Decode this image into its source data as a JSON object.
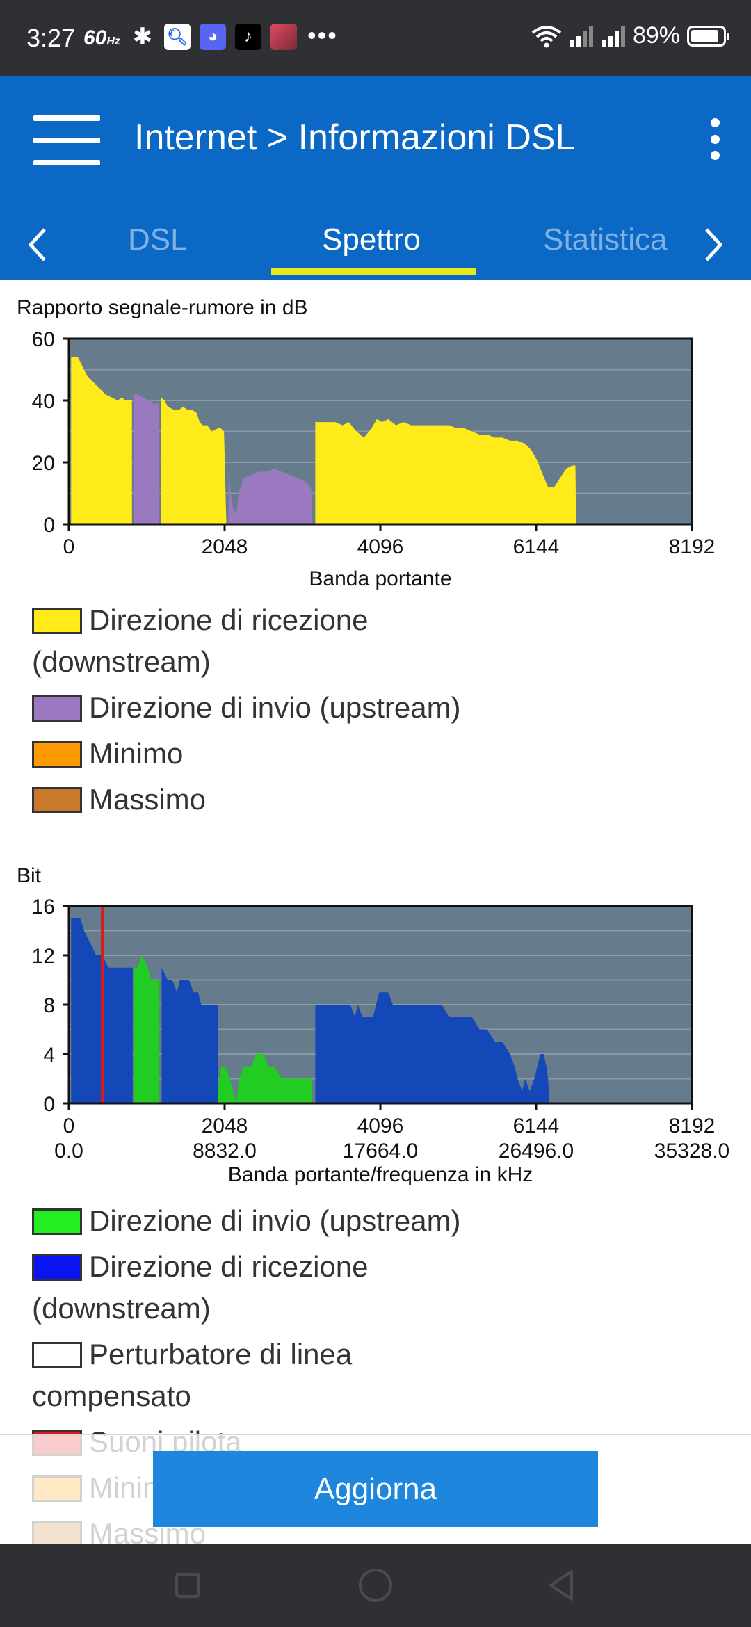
{
  "status_bar": {
    "time": "3:27",
    "refresh_rate": "60",
    "refresh_unit": "Hz",
    "battery": "89%",
    "battery_level": 0.89,
    "notification_icons": [
      "bluetooth-icon",
      "search-app-icon",
      "discord-icon",
      "tiktok-icon",
      "photo-app-icon"
    ]
  },
  "header": {
    "title": "Internet > Informazioni DSL",
    "tabs": [
      {
        "label": "DSL",
        "active": false
      },
      {
        "label": "Spettro",
        "active": true
      },
      {
        "label": "Statistica",
        "active": false
      }
    ]
  },
  "colors": {
    "appbar": "#0b68c4",
    "tab_indicator": "#e8e81f",
    "plot_bg": "#667b8c",
    "downstream_snr": "#ffeb1a",
    "upstream_snr": "#9b79c0",
    "minimo": "#ff9a00",
    "massimo": "#c87a2a",
    "upstream_bits": "#22cc22",
    "downstream_bits": "#1447b8",
    "pilot": "#e01818",
    "button": "#1e86dc"
  },
  "snr_chart": {
    "title": "Rapporto segnale-rumore in dB",
    "xlabel": "Banda portante",
    "legend": [
      {
        "label": "Direzione di ricezione (downstream)",
        "color": "#ffeb1a"
      },
      {
        "label": "Direzione di invio (upstream)",
        "color": "#9b79c0"
      },
      {
        "label": "Minimo",
        "color": "#ff9a00"
      },
      {
        "label": "Massimo",
        "color": "#c87a2a"
      }
    ]
  },
  "bit_chart": {
    "title": "Bit",
    "xlabel": "Banda portante/frequenza in kHz",
    "legend": [
      {
        "label": "Direzione di invio (upstream)",
        "color": "#22ee22"
      },
      {
        "label": "Direzione di ricezione (downstream)",
        "color": "#0a14f0"
      },
      {
        "label": "Perturbatore di linea compensato",
        "color": "#ffffff"
      },
      {
        "label": "Suoni pilota",
        "color": "#e01818"
      },
      {
        "label": "Minimo",
        "color": "#ff9a00"
      },
      {
        "label": "Massimo",
        "color": "#c87a2a"
      }
    ]
  },
  "chart_data": [
    {
      "type": "area",
      "title": "Rapporto segnale-rumore in dB",
      "xlabel": "Banda portante",
      "ylabel": "",
      "xlim": [
        0,
        8192
      ],
      "ylim": [
        0,
        60
      ],
      "xticks": [
        "0",
        "2048",
        "4096",
        "6144",
        "8192"
      ],
      "yticks": [
        "0",
        "20",
        "40",
        "60"
      ],
      "grid": true,
      "series": [
        {
          "name": "Direzione di ricezione (downstream)",
          "color": "#ffeb1a",
          "segments": [
            [
              [
                30,
                54
              ],
              [
                120,
                54
              ],
              [
                160,
                52
              ],
              [
                240,
                48
              ],
              [
                320,
                46
              ],
              [
                400,
                44
              ],
              [
                480,
                42
              ],
              [
                560,
                41
              ],
              [
                640,
                40
              ],
              [
                700,
                41
              ],
              [
                740,
                40
              ],
              [
                760,
                40
              ],
              [
                800,
                40
              ],
              [
                830,
                40
              ]
            ],
            [
              [
                1210,
                41
              ],
              [
                1260,
                40
              ],
              [
                1300,
                38
              ],
              [
                1380,
                37
              ],
              [
                1450,
                37
              ],
              [
                1500,
                38
              ],
              [
                1560,
                37
              ],
              [
                1620,
                37
              ],
              [
                1680,
                36
              ],
              [
                1720,
                33
              ],
              [
                1760,
                32
              ],
              [
                1820,
                32
              ],
              [
                1880,
                30
              ],
              [
                1960,
                31
              ],
              [
                2000,
                31
              ],
              [
                2040,
                30
              ],
              [
                2070,
                1
              ]
            ],
            [
              [
                3240,
                33
              ],
              [
                3300,
                33
              ],
              [
                3400,
                33
              ],
              [
                3500,
                33
              ],
              [
                3600,
                32
              ],
              [
                3680,
                33
              ],
              [
                3780,
                30
              ],
              [
                3880,
                28
              ],
              [
                3980,
                31
              ],
              [
                4050,
                34
              ],
              [
                4120,
                33
              ],
              [
                4200,
                34
              ],
              [
                4300,
                32
              ],
              [
                4400,
                33
              ],
              [
                4500,
                32
              ],
              [
                4600,
                32
              ],
              [
                4700,
                32
              ],
              [
                4800,
                32
              ],
              [
                4900,
                32
              ],
              [
                5000,
                32
              ],
              [
                5100,
                31
              ],
              [
                5200,
                31
              ],
              [
                5300,
                30
              ],
              [
                5400,
                29
              ],
              [
                5500,
                29
              ],
              [
                5600,
                28
              ],
              [
                5700,
                28
              ],
              [
                5800,
                27
              ],
              [
                5900,
                27
              ],
              [
                6000,
                26
              ],
              [
                6080,
                24
              ],
              [
                6150,
                21
              ],
              [
                6200,
                18
              ],
              [
                6250,
                15
              ],
              [
                6300,
                12
              ],
              [
                6380,
                12
              ],
              [
                6460,
                15
              ],
              [
                6540,
                18
              ],
              [
                6620,
                19
              ],
              [
                6660,
                19
              ],
              [
                6670,
                1
              ]
            ]
          ]
        },
        {
          "name": "Direzione di invio (upstream)",
          "color": "#9b79c0",
          "segments": [
            [
              [
                850,
                42
              ],
              [
                900,
                42
              ],
              [
                980,
                41
              ],
              [
                1060,
                40
              ],
              [
                1120,
                39
              ],
              [
                1170,
                39
              ],
              [
                1190,
                39
              ]
            ],
            [
              [
                2100,
                16
              ],
              [
                2150,
                6
              ],
              [
                2200,
                3
              ],
              [
                2230,
                10
              ],
              [
                2300,
                15
              ],
              [
                2400,
                16
              ],
              [
                2500,
                17
              ],
              [
                2600,
                17
              ],
              [
                2700,
                18
              ],
              [
                2800,
                17
              ],
              [
                2900,
                16
              ],
              [
                3000,
                15
              ],
              [
                3100,
                14
              ],
              [
                3150,
                13
              ],
              [
                3190,
                11
              ]
            ]
          ]
        }
      ]
    },
    {
      "type": "area",
      "title": "Bit",
      "xlabel": "Banda portante/frequenza in kHz",
      "ylabel": "",
      "xlim": [
        0,
        8192
      ],
      "ylim": [
        0,
        16
      ],
      "xticks": [
        "0",
        "2048",
        "4096",
        "6144",
        "8192"
      ],
      "xticks_secondary": [
        "0.0",
        "8832.0",
        "17664.0",
        "26496.0",
        "35328.0"
      ],
      "yticks": [
        "0",
        "4",
        "8",
        "12",
        "16"
      ],
      "grid": true,
      "pilot_tone_x": 440,
      "series": [
        {
          "name": "Direzione di ricezione (downstream)",
          "color": "#1447b8",
          "segments": [
            [
              [
                30,
                15
              ],
              [
                150,
                15
              ],
              [
                200,
                14
              ],
              [
                280,
                13
              ],
              [
                360,
                12
              ],
              [
                440,
                12
              ],
              [
                520,
                11
              ],
              [
                600,
                11
              ],
              [
                700,
                11
              ],
              [
                760,
                11
              ],
              [
                840,
                11
              ]
            ],
            [
              [
                1220,
                11
              ],
              [
                1300,
                10
              ],
              [
                1360,
                10
              ],
              [
                1420,
                9
              ],
              [
                1460,
                10
              ],
              [
                1520,
                10
              ],
              [
                1580,
                10
              ],
              [
                1640,
                9
              ],
              [
                1700,
                9
              ],
              [
                1740,
                8
              ],
              [
                1800,
                8
              ],
              [
                1880,
                8
              ],
              [
                1940,
                8
              ],
              [
                1960,
                8
              ]
            ],
            [
              [
                3240,
                8
              ],
              [
                3300,
                8
              ],
              [
                3400,
                8
              ],
              [
                3500,
                8
              ],
              [
                3600,
                8
              ],
              [
                3700,
                8
              ],
              [
                3760,
                7
              ],
              [
                3800,
                8
              ],
              [
                3860,
                7
              ],
              [
                3920,
                7
              ],
              [
                4000,
                7
              ],
              [
                4040,
                8
              ],
              [
                4080,
                9
              ],
              [
                4200,
                9
              ],
              [
                4260,
                8
              ],
              [
                4400,
                8
              ],
              [
                4600,
                8
              ],
              [
                4800,
                8
              ],
              [
                4900,
                8
              ],
              [
                5000,
                7
              ],
              [
                5100,
                7
              ],
              [
                5200,
                7
              ],
              [
                5300,
                7
              ],
              [
                5400,
                6
              ],
              [
                5500,
                6
              ],
              [
                5600,
                5
              ],
              [
                5700,
                5
              ],
              [
                5800,
                4
              ],
              [
                5860,
                3
              ],
              [
                5900,
                2
              ],
              [
                5960,
                1
              ],
              [
                6000,
                2
              ],
              [
                6060,
                1
              ],
              [
                6120,
                2
              ],
              [
                6160,
                3
              ],
              [
                6200,
                4
              ],
              [
                6240,
                4
              ],
              [
                6280,
                3
              ],
              [
                6300,
                2
              ],
              [
                6310,
                1
              ]
            ]
          ]
        },
        {
          "name": "Direzione di invio (upstream)",
          "color": "#22cc22",
          "segments": [
            [
              [
                850,
                11
              ],
              [
                900,
                11
              ],
              [
                960,
                12
              ],
              [
                1040,
                11
              ],
              [
                1080,
                10
              ],
              [
                1120,
                10
              ],
              [
                1190,
                10
              ]
            ],
            [
              [
                1960,
                1
              ],
              [
                2000,
                3
              ],
              [
                2060,
                3
              ],
              [
                2120,
                2
              ],
              [
                2160,
                1
              ],
              [
                2200,
                0
              ],
              [
                2240,
                2
              ],
              [
                2300,
                3
              ],
              [
                2400,
                3
              ],
              [
                2460,
                4
              ],
              [
                2560,
                4
              ],
              [
                2620,
                3
              ],
              [
                2700,
                3
              ],
              [
                2800,
                2
              ],
              [
                2900,
                2
              ],
              [
                3000,
                2
              ],
              [
                3100,
                2
              ],
              [
                3180,
                2
              ],
              [
                3200,
                2
              ]
            ]
          ]
        }
      ]
    }
  ],
  "footer": {
    "button_label": "Aggiorna"
  }
}
